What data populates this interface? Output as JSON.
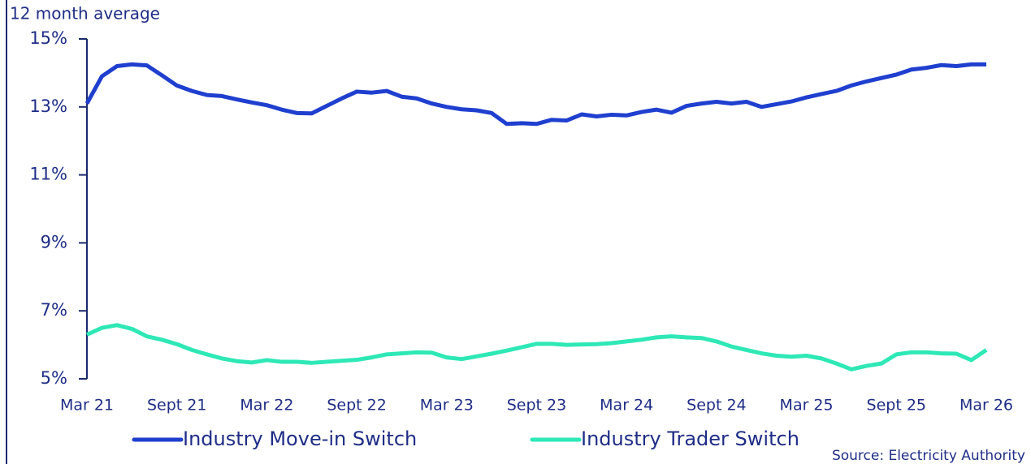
{
  "chart_data": {
    "type": "line",
    "y_axis_label": "12 month average",
    "source": "Source: Electricity Authority",
    "categories": [
      "Mar 21",
      null,
      null,
      null,
      null,
      null,
      "Sept 21",
      null,
      null,
      null,
      null,
      null,
      "Mar 22",
      null,
      null,
      null,
      null,
      null,
      "Sept 22",
      null,
      null,
      null,
      null,
      null,
      "Mar 23",
      null,
      null,
      null,
      null,
      null,
      "Sept 23",
      null,
      null,
      null,
      null,
      null,
      "Mar 24",
      null,
      null,
      null,
      null,
      null,
      "Sept 24",
      null,
      null,
      null,
      null,
      null,
      "Mar 25",
      null,
      null,
      null,
      null,
      null,
      "Sept 25",
      null,
      null,
      null,
      null,
      null,
      "Mar 26"
    ],
    "series": [
      {
        "name": "Industry Move-in Switch",
        "color": "#1f3fcf",
        "values": [
          13.1,
          13.9,
          14.2,
          14.25,
          14.22,
          13.93,
          13.63,
          13.47,
          13.35,
          13.32,
          13.22,
          13.13,
          13.05,
          12.92,
          12.82,
          12.81,
          13.03,
          13.25,
          13.45,
          13.42,
          13.47,
          13.3,
          13.25,
          13.1,
          13.0,
          12.93,
          12.9,
          12.82,
          12.5,
          12.52,
          12.5,
          12.62,
          12.6,
          12.78,
          12.72,
          12.77,
          12.75,
          12.85,
          12.92,
          12.83,
          13.03,
          13.1,
          13.15,
          13.1,
          13.15,
          13.0,
          13.08,
          13.16,
          13.28,
          13.38,
          13.47,
          13.63,
          13.75,
          13.85,
          13.95,
          14.1,
          14.15,
          14.23,
          14.2,
          14.25,
          14.25
        ]
      },
      {
        "name": "Industry Trader Switch",
        "color": "#2ee8b6",
        "values": [
          6.3,
          6.5,
          6.58,
          6.47,
          6.25,
          6.15,
          6.02,
          5.85,
          5.72,
          5.6,
          5.52,
          5.48,
          5.55,
          5.5,
          5.5,
          5.47,
          5.5,
          5.53,
          5.56,
          5.63,
          5.72,
          5.75,
          5.78,
          5.77,
          5.63,
          5.58,
          5.66,
          5.74,
          5.83,
          5.93,
          6.03,
          6.03,
          6.0,
          6.01,
          6.02,
          6.05,
          6.1,
          6.15,
          6.22,
          6.25,
          6.22,
          6.2,
          6.1,
          5.95,
          5.85,
          5.75,
          5.68,
          5.65,
          5.68,
          5.6,
          5.45,
          5.28,
          5.38,
          5.45,
          5.72,
          5.78,
          5.78,
          5.75,
          5.74,
          5.55,
          5.85
        ]
      }
    ],
    "ylim": [
      5,
      15
    ],
    "yticks": [
      {
        "value": 5,
        "label": "5%"
      },
      {
        "value": 7,
        "label": "7%"
      },
      {
        "value": 9,
        "label": "9%"
      },
      {
        "value": 11,
        "label": "11%"
      },
      {
        "value": 13,
        "label": "13%"
      },
      {
        "value": 15,
        "label": "15%"
      }
    ],
    "grid": false,
    "legend": "bottom"
  }
}
